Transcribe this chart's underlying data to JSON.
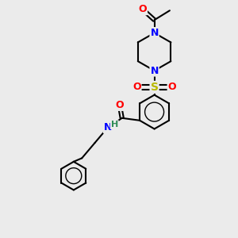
{
  "background_color": "#ebebeb",
  "bond_color": "#000000",
  "atom_colors": {
    "O": "#ff0000",
    "N": "#0000ff",
    "S": "#b8b800",
    "H": "#2e8b57",
    "C": "#000000"
  },
  "figsize": [
    3.0,
    3.0
  ],
  "dpi": 100,
  "xlim": [
    0,
    10
  ],
  "ylim": [
    0,
    10
  ]
}
